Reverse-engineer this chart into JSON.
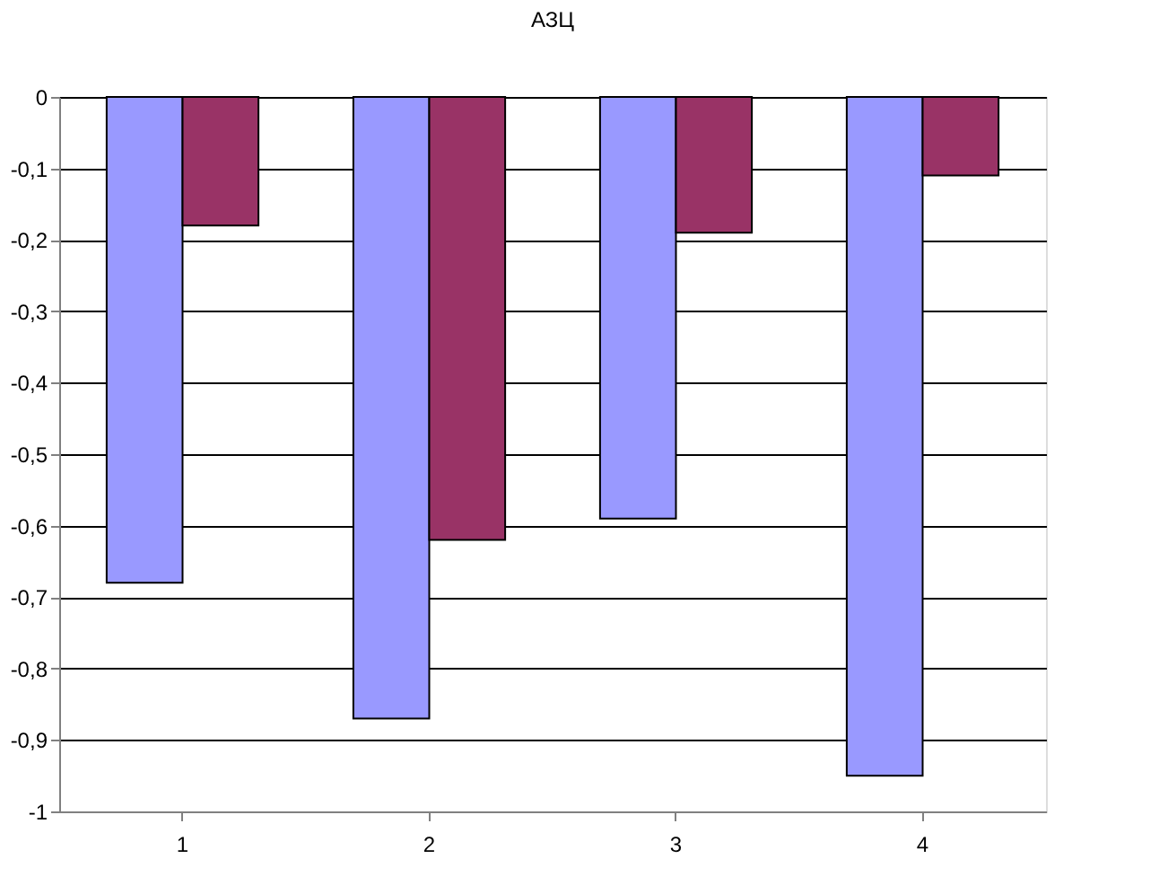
{
  "chart_data": {
    "type": "bar",
    "title": "АЗЦ",
    "categories": [
      "1",
      "2",
      "3",
      "4"
    ],
    "series": [
      {
        "color": "#9999ff",
        "values": [
          -0.68,
          -0.87,
          -0.59,
          -0.95
        ]
      },
      {
        "color": "#993366",
        "values": [
          -0.18,
          -0.62,
          -0.19,
          -0.11
        ]
      }
    ],
    "ylim": [
      -1,
      0
    ],
    "yticks": [
      {
        "value": -1,
        "label": "-1"
      },
      {
        "value": -0.9,
        "label": "-0,9"
      },
      {
        "value": -0.8,
        "label": "-0,8"
      },
      {
        "value": -0.7,
        "label": "-0,7"
      },
      {
        "value": -0.6,
        "label": "-0,6"
      },
      {
        "value": -0.5,
        "label": "-0,5"
      },
      {
        "value": -0.4,
        "label": "-0,4"
      },
      {
        "value": -0.3,
        "label": "-0,3"
      },
      {
        "value": -0.2,
        "label": "-0,2"
      },
      {
        "value": -0.1,
        "label": "-0,1"
      },
      {
        "value": 0,
        "label": "0"
      }
    ],
    "grid": "y",
    "legend": false
  }
}
